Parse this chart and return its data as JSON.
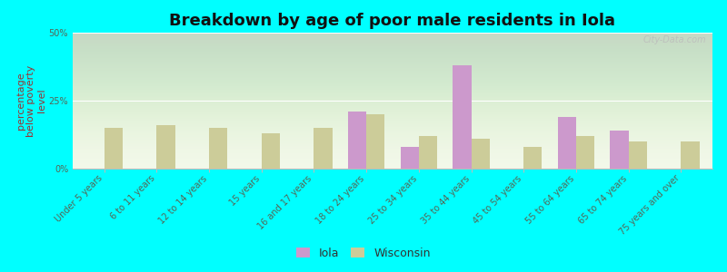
{
  "title": "Breakdown by age of poor male residents in Iola",
  "ylabel": "percentage\nbelow poverty\nlevel",
  "categories": [
    "Under 5 years",
    "6 to 11 years",
    "12 to 14 years",
    "15 years",
    "16 and 17 years",
    "18 to 24 years",
    "25 to 34 years",
    "35 to 44 years",
    "45 to 54 years",
    "55 to 64 years",
    "65 to 74 years",
    "75 years and over"
  ],
  "iola_values": [
    0,
    0,
    0,
    0,
    0,
    21,
    8,
    38,
    0,
    19,
    14,
    0
  ],
  "wisconsin_values": [
    15,
    16,
    15,
    13,
    15,
    20,
    12,
    11,
    8,
    12,
    10,
    10
  ],
  "iola_color": "#cc99cc",
  "wisconsin_color": "#cccc99",
  "background_color": "#00ffff",
  "ylim": [
    0,
    50
  ],
  "yticks": [
    0,
    25,
    50
  ],
  "ytick_labels": [
    "0%",
    "25%",
    "50%"
  ],
  "bar_width": 0.35,
  "title_fontsize": 13,
  "axis_label_fontsize": 8,
  "tick_fontsize": 7,
  "legend_labels": [
    "Iola",
    "Wisconsin"
  ],
  "watermark": "City-Data.com"
}
